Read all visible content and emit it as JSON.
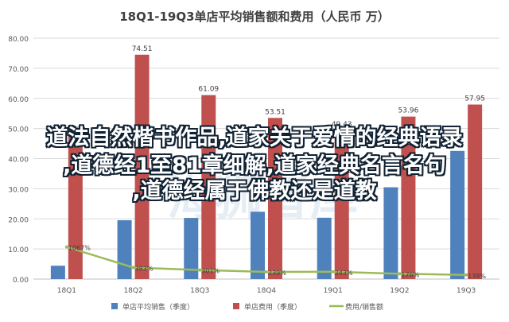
{
  "chart_data": {
    "type": "bar",
    "title": "18Q1-19Q3单店平均销售额和费用（人民币 万）",
    "categories": [
      "18Q1",
      "18Q2",
      "18Q3",
      "18Q4",
      "19Q1",
      "19Q2",
      "19Q3"
    ],
    "series": [
      {
        "name": "单店平均销售（季度）",
        "type": "bar",
        "color": "#4f81bd",
        "values": [
          4.43,
          19.54,
          20.31,
          22.36,
          20.37,
          30.48,
          42.56
        ]
      },
      {
        "name": "单店费用（季度）",
        "type": "bar",
        "color": "#c0504d",
        "values": [
          47.63,
          74.51,
          61.09,
          53.51,
          49.43,
          53.96,
          57.95
        ]
      },
      {
        "name": "费用/销售额",
        "type": "line",
        "color": "#9bbb59",
        "values": [
          1067,
          383,
          301,
          239,
          243,
          176,
          138
        ],
        "labels": [
          "1067%",
          "383%",
          "301%",
          "239%",
          "243%",
          "176%",
          "138%"
        ]
      }
    ],
    "bar_value_labels": [
      "47.63",
      "74.51",
      "61.09",
      "53.51",
      "49.43",
      "53.96",
      "57.95"
    ],
    "yticks": [
      "0.00",
      "10.00",
      "20.00",
      "30.00",
      "40.00",
      "50.00",
      "60.00",
      "70.00",
      "80.00"
    ],
    "ylim": [
      0,
      80
    ],
    "ratio_scale_top_percent": 8000,
    "grid": true,
    "legend_position": "bottom"
  },
  "overlay": {
    "lines": [
      "道法自然楷书作品,道家关于爱情的经典语录",
      ",道德经1至81章细解,道家经典名言名句",
      ",道德经属于佛教还是道教"
    ],
    "color": "#ffffff",
    "outline": "#112233"
  },
  "watermark": {
    "text": "海狮智库",
    "color": "#d6e3ef"
  }
}
